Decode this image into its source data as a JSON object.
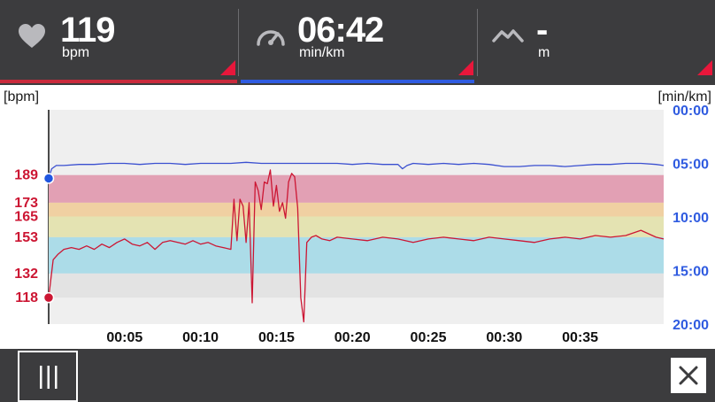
{
  "stats": {
    "heart_rate": {
      "value": "119",
      "unit": "bpm",
      "icon": "heart-icon"
    },
    "pace": {
      "value": "06:42",
      "unit": "min/km",
      "icon": "speedometer-icon"
    },
    "elevation": {
      "value": "-",
      "unit": "m",
      "icon": "mountain-icon"
    }
  },
  "chart_data": {
    "type": "line",
    "left_axis_unit": "[bpm]",
    "right_axis_unit": "[min/km]",
    "hr_zone_labels": [
      "189",
      "173",
      "165",
      "153",
      "132",
      "118"
    ],
    "hr_zones": [
      {
        "from": 173,
        "to": 189,
        "color": "#e2a0b4"
      },
      {
        "from": 165,
        "to": 173,
        "color": "#f0d0a2"
      },
      {
        "from": 153,
        "to": 165,
        "color": "#e4e3b2"
      },
      {
        "from": 132,
        "to": 153,
        "color": "#acdce8"
      },
      {
        "from": 118,
        "to": 132,
        "color": "#e3e3e3"
      }
    ],
    "pace_ticks": [
      "00:00",
      "05:00",
      "10:00",
      "15:00",
      "20:00"
    ],
    "x_ticks": [
      "00:05",
      "00:10",
      "00:15",
      "00:20",
      "00:25",
      "00:30",
      "00:35"
    ],
    "x_tick_minutes": [
      5,
      10,
      15,
      20,
      25,
      30,
      35
    ],
    "x_range_minutes": [
      0,
      40.5
    ],
    "hr_range": [
      102.7,
      226.8
    ],
    "pace_range_min": [
      0,
      20
    ],
    "series": [
      {
        "unit": "bpm",
        "color": "#cc1633",
        "x": [
          0,
          0.3,
          0.6,
          1,
          1.5,
          2,
          2.5,
          3,
          3.5,
          4,
          4.5,
          5,
          5.5,
          6,
          6.5,
          7,
          7.5,
          8,
          8.5,
          9,
          9.5,
          10,
          10.5,
          11,
          11.5,
          12,
          12.2,
          12.4,
          12.6,
          12.8,
          13,
          13.2,
          13.4,
          13.6,
          13.8,
          14,
          14.2,
          14.4,
          14.6,
          14.8,
          15,
          15.2,
          15.4,
          15.6,
          15.8,
          16,
          16.2,
          16.4,
          16.6,
          16.8,
          17,
          17.3,
          17.6,
          18,
          18.5,
          19,
          20,
          21,
          22,
          23,
          24,
          25,
          26,
          27,
          28,
          29,
          30,
          31,
          32,
          33,
          34,
          35,
          36,
          37,
          38,
          39,
          40,
          40.5
        ],
        "y": [
          118,
          140,
          143,
          146,
          147,
          146,
          148,
          146,
          149,
          147,
          150,
          152,
          149,
          148,
          150,
          146,
          150,
          151,
          150,
          149,
          151,
          149,
          150,
          148,
          147,
          146,
          175,
          151,
          175,
          171,
          150,
          173,
          115,
          185,
          180,
          169,
          185,
          184,
          192,
          171,
          183,
          168,
          173,
          164,
          185,
          190,
          188,
          170,
          118,
          104,
          150,
          153,
          154,
          152,
          151,
          153,
          152,
          151,
          153,
          152,
          150,
          152,
          153,
          152,
          151,
          153,
          152,
          151,
          150,
          152,
          153,
          152,
          154,
          153,
          154,
          157,
          153,
          152
        ]
      },
      {
        "unit": "min/km",
        "color": "#3a4fd0",
        "x": [
          0,
          0.2,
          0.5,
          1,
          2,
          3,
          4,
          5,
          6,
          7,
          8,
          9,
          10,
          11,
          12,
          13,
          14,
          15,
          16,
          17,
          18,
          19,
          20,
          21,
          22,
          23,
          23.3,
          23.6,
          24,
          25,
          26,
          27,
          28,
          29,
          30,
          31,
          32,
          33,
          34,
          35,
          36,
          37,
          38,
          39,
          40,
          40.5
        ],
        "y": [
          6.4,
          5.5,
          5.2,
          5.2,
          5.1,
          5.1,
          5.0,
          5.0,
          5.1,
          5.0,
          5.0,
          5.1,
          5.0,
          5.0,
          5.0,
          4.9,
          5.0,
          5.0,
          5.0,
          5.0,
          5.0,
          5.0,
          5.1,
          5.0,
          5.1,
          5.1,
          5.5,
          5.2,
          5.0,
          5.1,
          5.0,
          5.1,
          5.0,
          5.1,
          5.3,
          5.3,
          5.2,
          5.2,
          5.3,
          5.2,
          5.1,
          5.1,
          5.0,
          5.0,
          5.1,
          5.2
        ]
      }
    ],
    "markers": [
      {
        "series": "bpm",
        "x": 0,
        "y": 118,
        "color": "#cc1633"
      },
      {
        "series": "min/km",
        "x": 0,
        "y": 6.4,
        "color": "#1f56e0"
      }
    ],
    "grid": false
  },
  "toolbar": {
    "menu_icon": "menu-bars-icon",
    "close_icon": "close-icon"
  },
  "colors": {
    "bar_bg": "#3c3c3e",
    "accent_red": "#e8173b",
    "accent_blue": "#2f5be0",
    "hr_label": "#cc1633",
    "pace_label": "#2f5be0"
  }
}
